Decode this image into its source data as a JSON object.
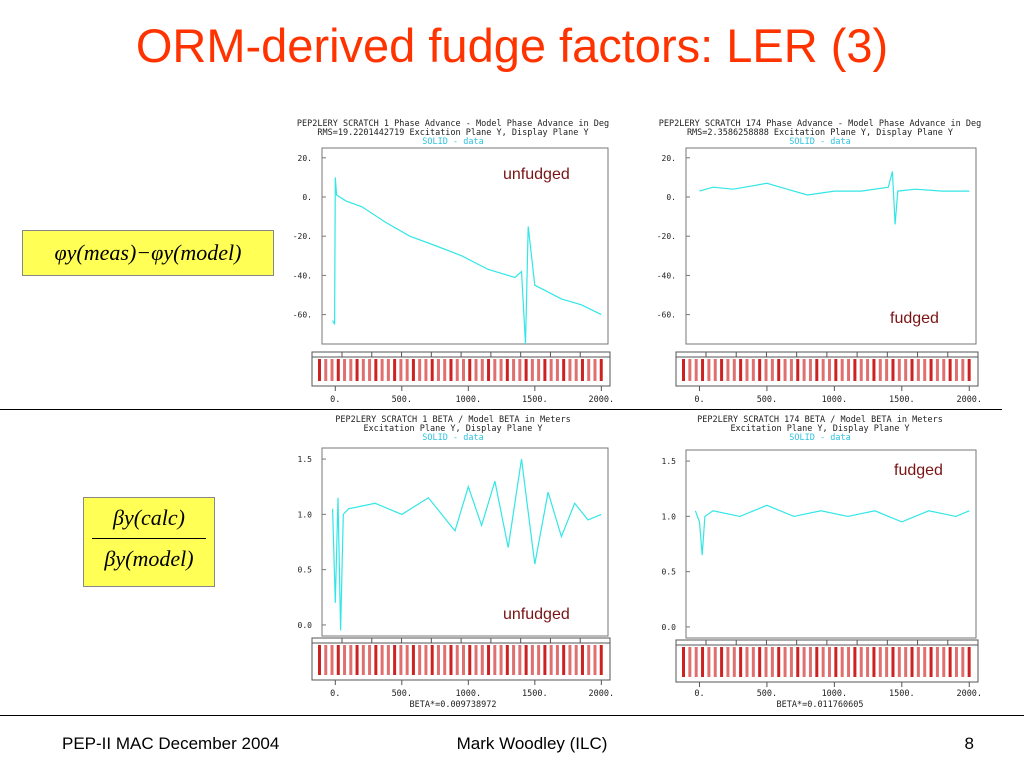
{
  "slide": {
    "title": "ORM-derived fudge factors: LER (3)",
    "footer_left": "PEP-II MAC December 2004",
    "footer_center": "Mark Woodley (ILC)",
    "footer_right": "8"
  },
  "formula_phase": {
    "left": "φy(meas)−φy(model)"
  },
  "formula_beta": {
    "numerator": "βy(calc)",
    "denominator": "βy(model)"
  },
  "colors": {
    "title": "#ff3300",
    "data": "#33e6e6",
    "header_link": "#2ec4e0",
    "annotation": "#7a1414",
    "formula_bg": "#ffff55"
  },
  "chart_data": [
    {
      "type": "line",
      "header1": "PEP2LERY SCRATCH 1 Phase Advance - Model Phase Advance in Deg",
      "header2": "RMS=19.2201442719 Excitation Plane Y, Display Plane Y",
      "header3": "SOLID  - data",
      "annotation": "unfudged",
      "yticks": [
        "20.",
        "0.",
        "-20.",
        "-40.",
        "-60."
      ],
      "xticks": [
        "0.",
        "500.",
        "1000.",
        "1500.",
        "2000."
      ],
      "ylim": [
        -75,
        25
      ],
      "xlim": [
        -100,
        2050
      ],
      "series": [
        {
          "x": [
            -20,
            -5,
            0,
            10,
            80,
            200,
            380,
            560,
            760,
            950,
            1150,
            1350,
            1400,
            1430,
            1450,
            1500,
            1700,
            1850,
            2000
          ],
          "values": [
            -63,
            -65,
            10,
            1,
            -2,
            -5,
            -13,
            -20,
            -25,
            -30,
            -37,
            -41,
            -38,
            -75,
            -15,
            -45,
            -52,
            -55,
            -60
          ]
        }
      ]
    },
    {
      "type": "line",
      "header1": "PEP2LERY SCRATCH 174 Phase Advance - Model Phase Advance in Deg",
      "header2": "RMS=2.3586258888 Excitation Plane Y, Display Plane Y",
      "header3": "SOLID  - data",
      "annotation": "fudged",
      "yticks": [
        "20.",
        "0.",
        "-20.",
        "-40.",
        "-60."
      ],
      "xticks": [
        "0.",
        "500.",
        "1000.",
        "1500.",
        "2000."
      ],
      "ylim": [
        -75,
        25
      ],
      "xlim": [
        -100,
        2050
      ],
      "series": [
        {
          "x": [
            0,
            100,
            250,
            500,
            650,
            800,
            1000,
            1200,
            1400,
            1430,
            1450,
            1470,
            1600,
            1800,
            2000
          ],
          "values": [
            3,
            5,
            4,
            7,
            4,
            1,
            3,
            3,
            5,
            13,
            -14,
            3,
            4,
            3,
            3
          ]
        }
      ]
    },
    {
      "type": "line",
      "header1": "PEP2LERY SCRATCH 1 BETA / Model BETA in Meters",
      "header2": "Excitation Plane Y, Display Plane Y",
      "header3": "SOLID  - data",
      "annotation": "unfudged",
      "footer": "BETA*=0.009738972",
      "yticks": [
        "1.5",
        "1.0",
        "0.5",
        "0.0"
      ],
      "xticks": [
        "0.",
        "500.",
        "1000.",
        "1500.",
        "2000."
      ],
      "ylim": [
        -0.1,
        1.6
      ],
      "xlim": [
        -100,
        2050
      ],
      "series": [
        {
          "x": [
            -20,
            0,
            20,
            40,
            60,
            100,
            300,
            500,
            700,
            900,
            1000,
            1100,
            1200,
            1300,
            1400,
            1500,
            1600,
            1700,
            1800,
            1900,
            2000
          ],
          "values": [
            1.05,
            0.2,
            1.15,
            -0.05,
            1.0,
            1.05,
            1.1,
            1.0,
            1.15,
            0.85,
            1.25,
            0.9,
            1.3,
            0.7,
            1.5,
            0.55,
            1.2,
            0.8,
            1.1,
            0.95,
            1.0
          ]
        }
      ]
    },
    {
      "type": "line",
      "header1": "PEP2LERY SCRATCH 174 BETA / Model BETA in Meters",
      "header2": "Excitation Plane Y, Display Plane Y",
      "header3": "SOLID  - data",
      "annotation": "fudged",
      "footer": "BETA*=0.011760605",
      "yticks": [
        "1.5",
        "1.0",
        "0.5",
        "0.0"
      ],
      "xticks": [
        "0.",
        "500.",
        "1000.",
        "1500.",
        "2000."
      ],
      "ylim": [
        -0.1,
        1.6
      ],
      "xlim": [
        -100,
        2050
      ],
      "series": [
        {
          "x": [
            -30,
            0,
            20,
            40,
            100,
            300,
            500,
            700,
            900,
            1100,
            1300,
            1500,
            1700,
            1900,
            2000
          ],
          "values": [
            1.05,
            0.95,
            0.65,
            1.0,
            1.05,
            1.0,
            1.1,
            1.0,
            1.05,
            1.0,
            1.05,
            0.95,
            1.05,
            1.0,
            1.05
          ]
        }
      ]
    }
  ]
}
